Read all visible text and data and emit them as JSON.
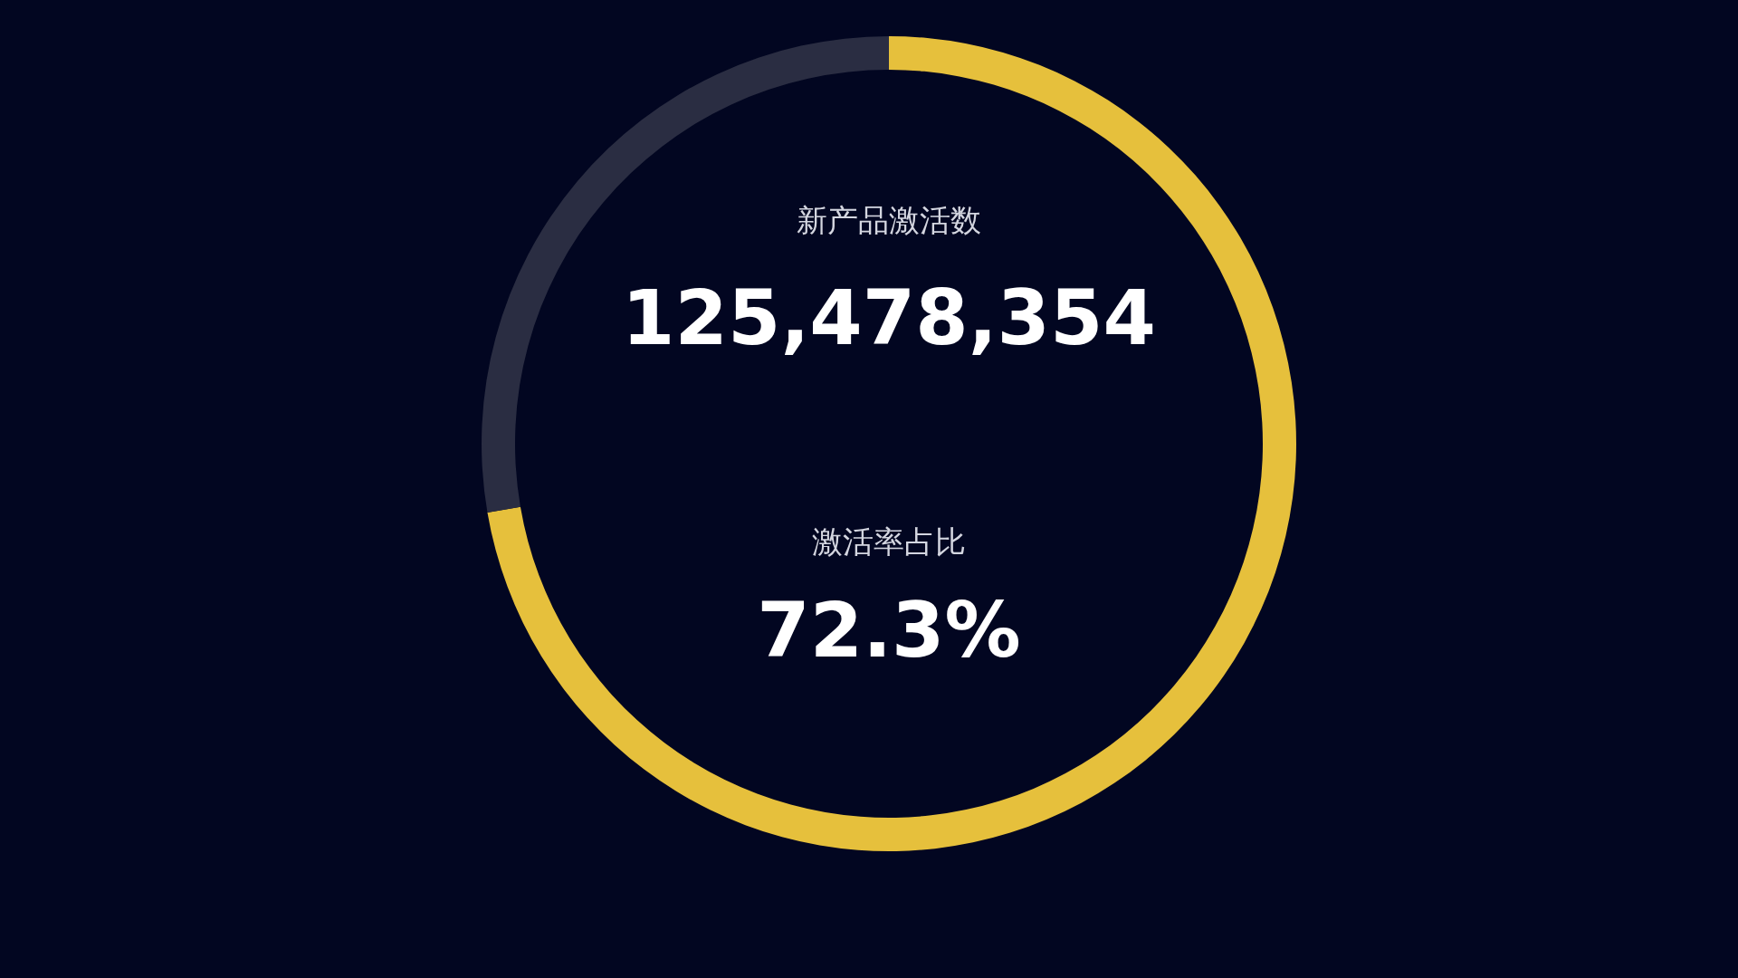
{
  "chart_data": {
    "type": "donut",
    "categories": [
      null,
      null
    ],
    "values": [
      72.3,
      27.7
    ],
    "colors": [
      "#e6c03c",
      "#2a2d42"
    ],
    "annotations": [
      "新产品激活数",
      "125,478,354",
      "激活率占比",
      "72.3%"
    ]
  }
}
